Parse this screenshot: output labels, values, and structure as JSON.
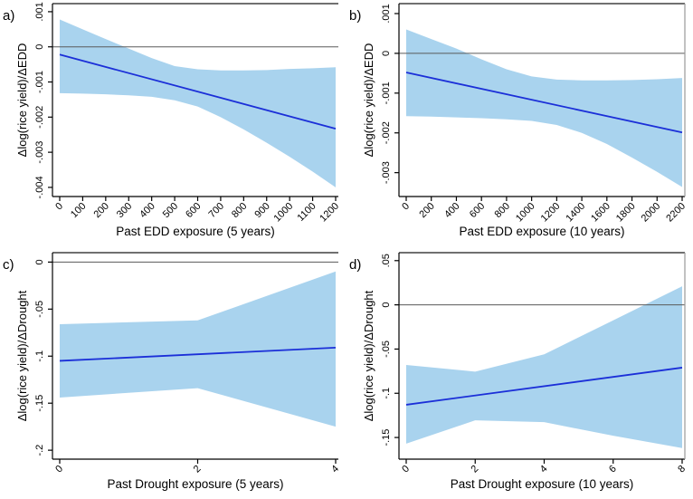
{
  "figure": {
    "background": "#ffffff",
    "description": "2x2 panel figure of marginal effects of EDD and Drought on rice yield with 95% confidence bands"
  },
  "colors": {
    "band": "#a9d3ee",
    "line": "#1b2fd8",
    "axis": "#000000",
    "zero_line": "#5a5a5a",
    "top_border": "#1a1a1a",
    "right_border": "#9a9a9a",
    "text": "#000000"
  },
  "chart_data": [
    {
      "type": "line",
      "panel_label": "a)",
      "xlabel": "Past EDD exposure (5 years)",
      "ylabel": "Δlog(rice yield)/ΔEDD",
      "xlim": [
        0,
        1200
      ],
      "ylim": [
        -0.00426,
        0.00123
      ],
      "xticks": [
        0,
        100,
        200,
        300,
        400,
        500,
        600,
        700,
        800,
        900,
        1000,
        1100,
        1200
      ],
      "xtick_labels": [
        "0",
        "100",
        "200",
        "300",
        "400",
        "500",
        "600",
        "700",
        "800",
        "900",
        "1000",
        "1100",
        "1200"
      ],
      "yticks": [
        0.001,
        0,
        -0.001,
        -0.002,
        -0.003,
        -0.004
      ],
      "ytick_labels": [
        ".001",
        "0",
        "-.001",
        "-.002",
        "-.003",
        "-.004"
      ],
      "zero_line": 0,
      "grid": false,
      "legend": null,
      "line": {
        "x": [
          0,
          1200
        ],
        "y": [
          -0.00022,
          -0.00233
        ]
      },
      "ci": {
        "x": [
          0,
          100,
          200,
          300,
          400,
          500,
          600,
          700,
          800,
          900,
          1000,
          1100,
          1200
        ],
        "upper": [
          0.00078,
          0.0005,
          0.00022,
          -5e-05,
          -0.00032,
          -0.00055,
          -0.00064,
          -0.00067,
          -0.00067,
          -0.00066,
          -0.00063,
          -0.00061,
          -0.00058
        ],
        "lower": [
          -0.00132,
          -0.00133,
          -0.00135,
          -0.00138,
          -0.00142,
          -0.00152,
          -0.0017,
          -0.002,
          -0.00235,
          -0.00273,
          -0.00313,
          -0.00355,
          -0.004
        ]
      },
      "right_border": false
    },
    {
      "type": "line",
      "panel_label": "b)",
      "xlabel": "Past EDD exposure (10 years)",
      "ylabel": "Δlog(rice yield)/ΔEDD",
      "xlim": [
        0,
        2200
      ],
      "ylim": [
        -0.0036,
        0.00125
      ],
      "xticks": [
        0,
        200,
        400,
        600,
        800,
        1000,
        1200,
        1400,
        1600,
        1800,
        2000,
        2200
      ],
      "xtick_labels": [
        "0",
        "200",
        "400",
        "600",
        "800",
        "1000",
        "1200",
        "1400",
        "1600",
        "1800",
        "2000",
        "2200"
      ],
      "yticks": [
        0.001,
        0,
        -0.001,
        -0.002,
        -0.003
      ],
      "ytick_labels": [
        ".001",
        "0",
        "-.001",
        "-.002",
        "-.003"
      ],
      "zero_line": 0,
      "grid": false,
      "legend": null,
      "line": {
        "x": [
          0,
          2200
        ],
        "y": [
          -0.00048,
          -0.00199
        ]
      },
      "ci": {
        "x": [
          0,
          200,
          400,
          600,
          800,
          1000,
          1200,
          1400,
          1600,
          1800,
          2000,
          2200
        ],
        "upper": [
          0.0006,
          0.00036,
          0.00012,
          -0.00015,
          -0.0004,
          -0.00058,
          -0.00066,
          -0.00068,
          -0.00068,
          -0.00067,
          -0.00065,
          -0.00062
        ],
        "lower": [
          -0.00158,
          -0.00159,
          -0.00161,
          -0.00163,
          -0.00166,
          -0.0017,
          -0.0018,
          -0.002,
          -0.00228,
          -0.00262,
          -0.00298,
          -0.00336
        ]
      },
      "right_border": true
    },
    {
      "type": "line",
      "panel_label": "c)",
      "xlabel": "Past Drought exposure (5 years)",
      "ylabel": "Δlog(rice yield)/ΔDrought",
      "xlim": [
        0,
        4
      ],
      "ylim": [
        -0.2095,
        0.01
      ],
      "xticks": [
        0,
        2,
        4
      ],
      "xtick_labels": [
        "0",
        "2",
        "4"
      ],
      "yticks": [
        0,
        -0.05,
        -0.1,
        -0.15,
        -0.2
      ],
      "ytick_labels": [
        "0",
        "-.05",
        "-.1",
        "-.15",
        "-.2"
      ],
      "zero_line": 0,
      "grid": false,
      "legend": null,
      "line": {
        "x": [
          0,
          4
        ],
        "y": [
          -0.105,
          -0.091
        ]
      },
      "ci": {
        "x": [
          0,
          2,
          4
        ],
        "upper": [
          -0.066,
          -0.062,
          -0.01
        ],
        "lower": [
          -0.144,
          -0.134,
          -0.175
        ]
      },
      "right_border": false
    },
    {
      "type": "line",
      "panel_label": "d)",
      "xlabel": "Past Drought exposure (10 years)",
      "ylabel": "Δlog(rice yield)/ΔDrought",
      "xlim": [
        0,
        8
      ],
      "ylim": [
        -0.1745,
        0.059
      ],
      "xticks": [
        0,
        2,
        4,
        6,
        8
      ],
      "xtick_labels": [
        "0",
        "2",
        "4",
        "6",
        "8"
      ],
      "yticks": [
        0.05,
        0,
        -0.05,
        -0.1,
        -0.15
      ],
      "ytick_labels": [
        ".05",
        "0",
        "-.05",
        "-.1",
        "-.15"
      ],
      "zero_line": 0,
      "grid": false,
      "legend": null,
      "line": {
        "x": [
          0,
          8
        ],
        "y": [
          -0.113,
          -0.071
        ]
      },
      "ci": {
        "x": [
          0,
          2,
          4,
          6,
          8
        ],
        "upper": [
          -0.068,
          -0.0755,
          -0.056,
          -0.0175,
          0.021
        ],
        "lower": [
          -0.157,
          -0.1306,
          -0.1327,
          -0.148,
          -0.162
        ]
      },
      "right_border": true
    }
  ]
}
